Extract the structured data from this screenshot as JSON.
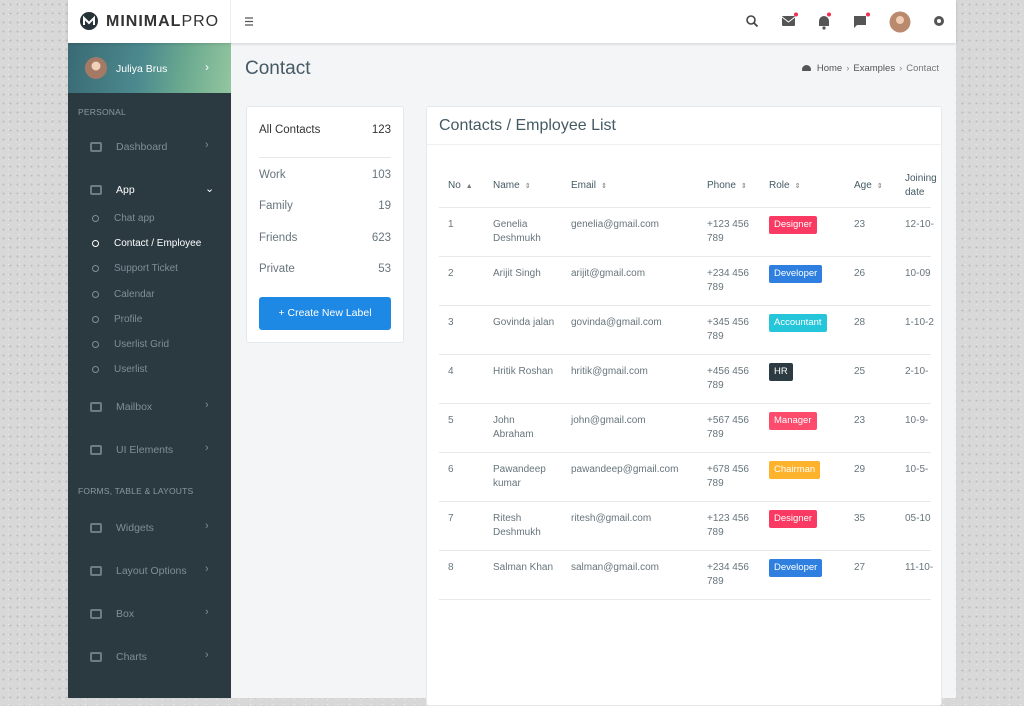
{
  "header": {
    "logo_bold": "MINIMAL",
    "logo_light": "PRO"
  },
  "sidebar": {
    "user": "Juliya Brus",
    "sections": [
      {
        "title": "PERSONAL",
        "items": [
          {
            "label": "Dashboard"
          },
          {
            "label": "App",
            "sub": [
              "Chat app",
              "Contact / Employee",
              "Support Ticket",
              "Calendar",
              "Profile",
              "Userlist Grid",
              "Userlist"
            ]
          },
          {
            "label": "Mailbox"
          },
          {
            "label": "UI Elements"
          }
        ]
      },
      {
        "title": "FORMS, TABLE & LAYOUTS",
        "items": [
          {
            "label": "Widgets"
          },
          {
            "label": "Layout Options"
          },
          {
            "label": "Box"
          },
          {
            "label": "Charts"
          }
        ]
      }
    ]
  },
  "content": {
    "title": "Contact",
    "breadcrumb": [
      "Home",
      "Examples",
      "Contact"
    ]
  },
  "labels": {
    "items": [
      {
        "name": "All Contacts",
        "count": 123
      },
      {
        "name": "Work",
        "count": 103
      },
      {
        "name": "Family",
        "count": 19
      },
      {
        "name": "Friends",
        "count": 623
      },
      {
        "name": "Private",
        "count": 53
      }
    ],
    "button": "+ Create New Label"
  },
  "table": {
    "title": "Contacts / Employee List",
    "columns": [
      "No",
      "Name",
      "Email",
      "Phone",
      "Role",
      "Age",
      "Joining date"
    ],
    "role_colors": {
      "Designer": "#fb3a63",
      "Developer": "#2e7fe0",
      "Accountant": "#26c6da",
      "HR": "#2c3a41",
      "Manager": "#fc4b6c",
      "Chairman": "#ffb22b"
    },
    "rows": [
      [
        1,
        "Genelia Deshmukh",
        "genelia@gmail.com",
        "+123 456 789",
        "Designer",
        23,
        "12-10-"
      ],
      [
        2,
        "Arijit Singh",
        "arijit@gmail.com",
        "+234 456 789",
        "Developer",
        26,
        "10-09"
      ],
      [
        3,
        "Govinda jalan",
        "govinda@gmail.com",
        "+345 456 789",
        "Accountant",
        28,
        "1-10-2"
      ],
      [
        4,
        "Hritik Roshan",
        "hritik@gmail.com",
        "+456 456 789",
        "HR",
        25,
        "2-10-"
      ],
      [
        5,
        "John Abraham",
        "john@gmail.com",
        "+567 456 789",
        "Manager",
        23,
        "10-9-"
      ],
      [
        6,
        "Pawandeep kumar",
        "pawandeep@gmail.com",
        "+678 456 789",
        "Chairman",
        29,
        "10-5-"
      ],
      [
        7,
        "Ritesh Deshmukh",
        "ritesh@gmail.com",
        "+123 456 789",
        "Designer",
        35,
        "05-10"
      ],
      [
        8,
        "Salman Khan",
        "salman@gmail.com",
        "+234 456 789",
        "Developer",
        27,
        "11-10-"
      ]
    ]
  }
}
